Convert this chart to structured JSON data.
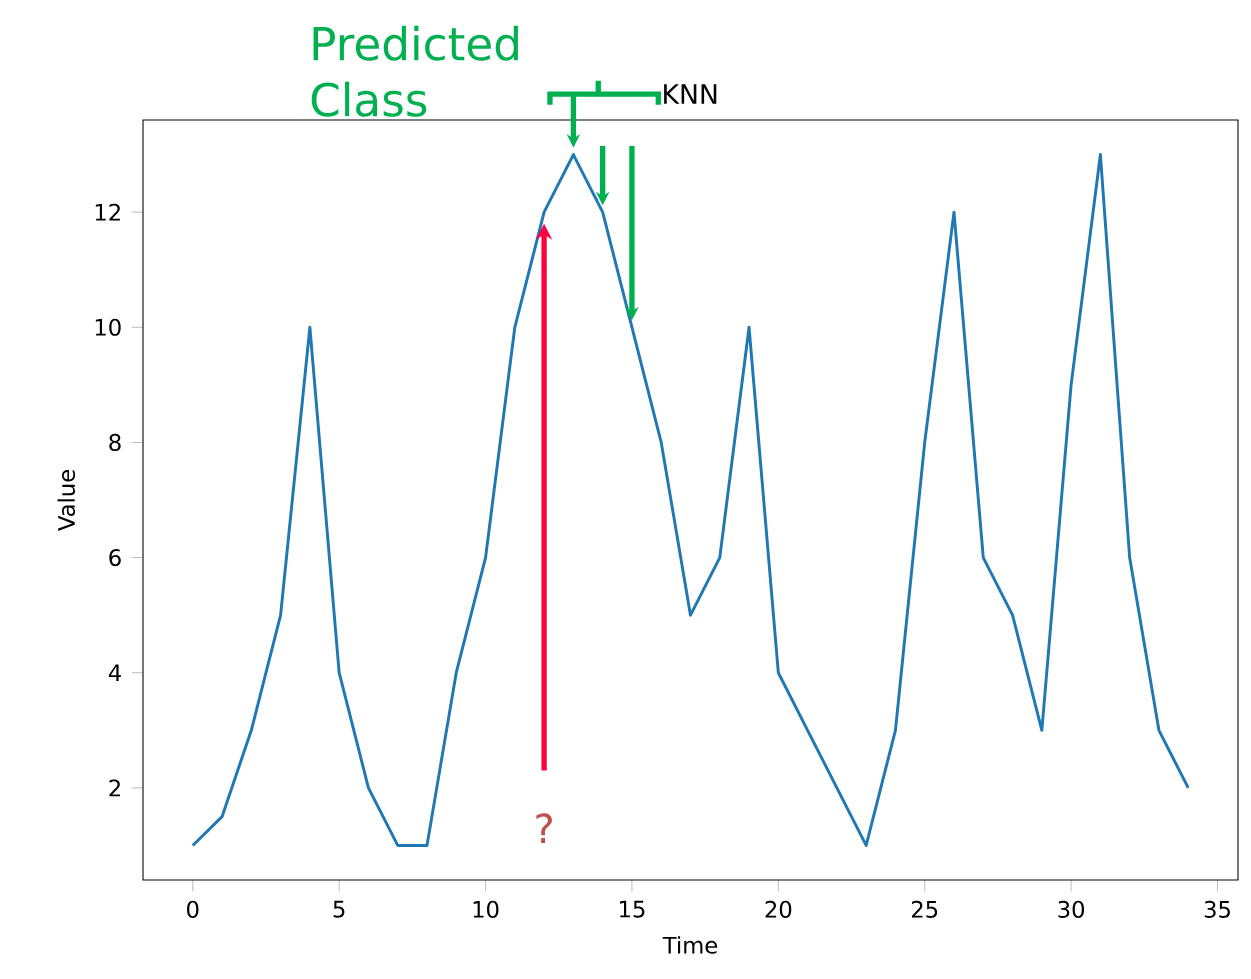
{
  "chart_data": {
    "type": "line",
    "xlabel": "Time",
    "ylabel": "Value",
    "x": [
      0,
      1,
      2,
      3,
      4,
      5,
      6,
      7,
      8,
      9,
      10,
      11,
      12,
      13,
      14,
      15,
      16,
      17,
      18,
      19,
      20,
      21,
      22,
      23,
      24,
      25,
      26,
      27,
      28,
      29,
      30,
      31,
      32,
      33,
      34
    ],
    "values": [
      1,
      1.5,
      3,
      5,
      10,
      4,
      2,
      1,
      1,
      4,
      6,
      10,
      12,
      13,
      12,
      10,
      8,
      5,
      6,
      10,
      4,
      3,
      2,
      1,
      3,
      8,
      12,
      6,
      5,
      3,
      9,
      13,
      6,
      3,
      2
    ],
    "color": "#1f77b4",
    "xlim": [
      -1.7,
      35.7
    ],
    "ylim": [
      0.4,
      13.6
    ],
    "xticks": [
      0,
      5,
      10,
      15,
      20,
      25,
      30,
      35
    ],
    "yticks": [
      2,
      4,
      6,
      8,
      10,
      12
    ],
    "annotations": [
      "?",
      {
        "text": "Predicted Class",
        "x": 13,
        "y": 13
      },
      "KNN"
    ]
  }
}
